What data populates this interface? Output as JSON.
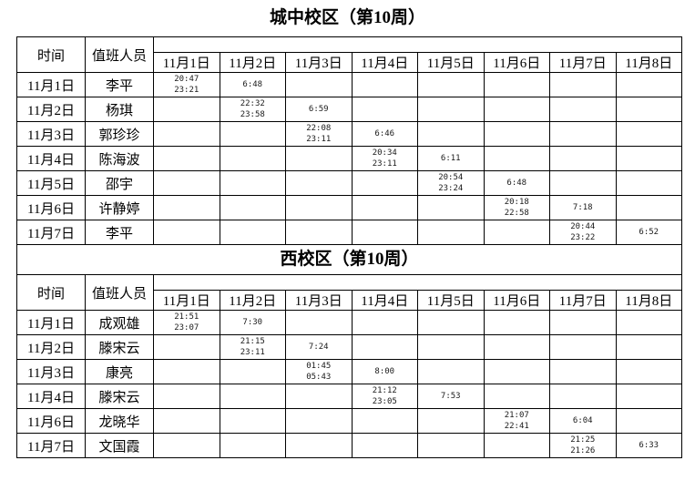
{
  "page": {
    "background_color": "#ffffff",
    "text_color": "#000000",
    "border_color": "#000000",
    "time_text_color": "#1a1a1a"
  },
  "tables": [
    {
      "title": "城中校区（第10周）",
      "time_label": "时间",
      "staff_label": "值班人员",
      "date_columns": [
        "11月1日",
        "11月2日",
        "11月3日",
        "11月4日",
        "11月5日",
        "11月6日",
        "11月7日",
        "11月8日"
      ],
      "rows": [
        {
          "date": "11月1日",
          "person": "李平",
          "times": [
            [
              "20:47",
              "23:21"
            ],
            [
              "6:48"
            ],
            [],
            [],
            [],
            [],
            [],
            []
          ]
        },
        {
          "date": "11月2日",
          "person": "杨琪",
          "times": [
            [],
            [
              "22:32",
              "23:58"
            ],
            [
              "6:59"
            ],
            [],
            [],
            [],
            [],
            []
          ]
        },
        {
          "date": "11月3日",
          "person": "郭珍珍",
          "times": [
            [],
            [],
            [
              "22:08",
              "23:11"
            ],
            [
              "6:46"
            ],
            [],
            [],
            [],
            []
          ]
        },
        {
          "date": "11月4日",
          "person": "陈海波",
          "times": [
            [],
            [],
            [],
            [
              "20:34",
              "23:11"
            ],
            [
              "6:11"
            ],
            [],
            [],
            []
          ]
        },
        {
          "date": "11月5日",
          "person": "邵宇",
          "times": [
            [],
            [],
            [],
            [],
            [
              "20:54",
              "23:24"
            ],
            [
              "6:48"
            ],
            [],
            []
          ]
        },
        {
          "date": "11月6日",
          "person": "许静婷",
          "times": [
            [],
            [],
            [],
            [],
            [],
            [
              "20:18",
              "22:58"
            ],
            [
              "7:18"
            ],
            []
          ]
        },
        {
          "date": "11月7日",
          "person": "李平",
          "times": [
            [],
            [],
            [],
            [],
            [],
            [],
            [
              "20:44",
              "23:22"
            ],
            [
              "6:52"
            ]
          ]
        }
      ]
    },
    {
      "title": "西校区（第10周）",
      "time_label": "时间",
      "staff_label": "值班人员",
      "date_columns": [
        "11月1日",
        "11月2日",
        "11月3日",
        "11月4日",
        "11月5日",
        "11月6日",
        "11月7日",
        "11月8日"
      ],
      "rows": [
        {
          "date": "11月1日",
          "person": "成观雄",
          "times": [
            [
              "21:51",
              "23:07"
            ],
            [
              "7:30"
            ],
            [],
            [],
            [],
            [],
            [],
            []
          ]
        },
        {
          "date": "11月2日",
          "person": "滕宋云",
          "times": [
            [],
            [
              "21:15",
              "23:11"
            ],
            [
              "7:24"
            ],
            [],
            [],
            [],
            [],
            []
          ]
        },
        {
          "date": "11月3日",
          "person": "康亮",
          "times": [
            [],
            [],
            [
              "01:45",
              "05:43"
            ],
            [
              "8:00"
            ],
            [],
            [],
            [],
            []
          ]
        },
        {
          "date": "11月4日",
          "person": "滕宋云",
          "times": [
            [],
            [],
            [],
            [
              "21:12",
              "23:05"
            ],
            [
              "7:53"
            ],
            [],
            [],
            []
          ]
        },
        {
          "date": "11月6日",
          "person": "龙晓华",
          "times": [
            [],
            [],
            [],
            [],
            [],
            [
              "21:07",
              "22:41"
            ],
            [
              "6:04"
            ],
            []
          ]
        },
        {
          "date": "11月7日",
          "person": "文国霞",
          "times": [
            [],
            [],
            [],
            [],
            [],
            [],
            [
              "21:25",
              "21:26"
            ],
            [
              "6:33"
            ]
          ]
        }
      ]
    }
  ]
}
